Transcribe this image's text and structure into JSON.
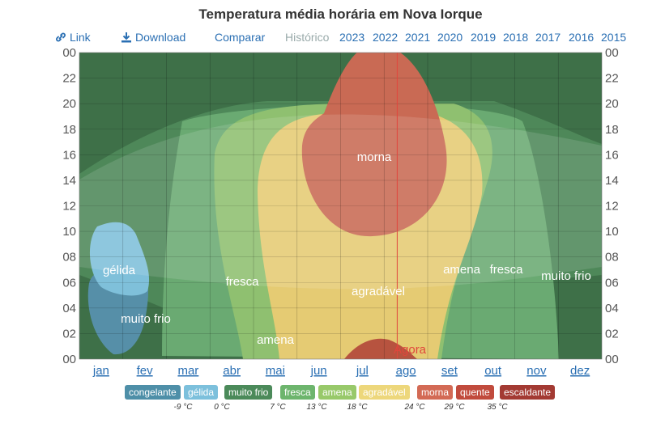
{
  "title": "Temperatura média horária em Nova Iorque",
  "toolbar": {
    "link_label": "Link",
    "download_label": "Download",
    "compare_label": "Comparar",
    "history_label": "Histórico",
    "years": [
      "2023",
      "2022",
      "2021",
      "2020",
      "2019",
      "2018",
      "2017",
      "2016",
      "2015"
    ]
  },
  "chart_data": {
    "type": "heatmap",
    "title": "Temperatura média horária em Nova Iorque",
    "x_labels": [
      "jan",
      "fev",
      "mar",
      "abr",
      "mai",
      "jun",
      "jul",
      "ago",
      "set",
      "out",
      "nov",
      "dez"
    ],
    "y_labels": [
      "00",
      "02",
      "04",
      "06",
      "08",
      "10",
      "12",
      "14",
      "16",
      "18",
      "20",
      "22",
      "00"
    ],
    "y_range": [
      0,
      24
    ],
    "now_label": "Agora",
    "now_month": 7.3,
    "region_labels": [
      "gélida",
      "muito frio",
      "fresca",
      "amena",
      "morna",
      "agradável",
      "amena",
      "fresca",
      "muito frio"
    ],
    "categories": [
      {
        "name": "congelante",
        "color": "#4e8fa8"
      },
      {
        "name": "gélida",
        "color": "#7cc0dc"
      },
      {
        "name": "muito frio",
        "color": "#4b8a5a"
      },
      {
        "name": "fresca",
        "color": "#6db56d"
      },
      {
        "name": "amena",
        "color": "#98c96a"
      },
      {
        "name": "agradável",
        "color": "#edd77b"
      },
      {
        "name": "morna",
        "color": "#d36a55"
      },
      {
        "name": "quente",
        "color": "#c14b3d"
      },
      {
        "name": "escaldante",
        "color": "#a33a33"
      }
    ],
    "thresholds": [
      "-9 °C",
      "0 °C",
      "7 °C",
      "13 °C",
      "18 °C",
      "24 °C",
      "29 °C",
      "35 °C"
    ]
  }
}
